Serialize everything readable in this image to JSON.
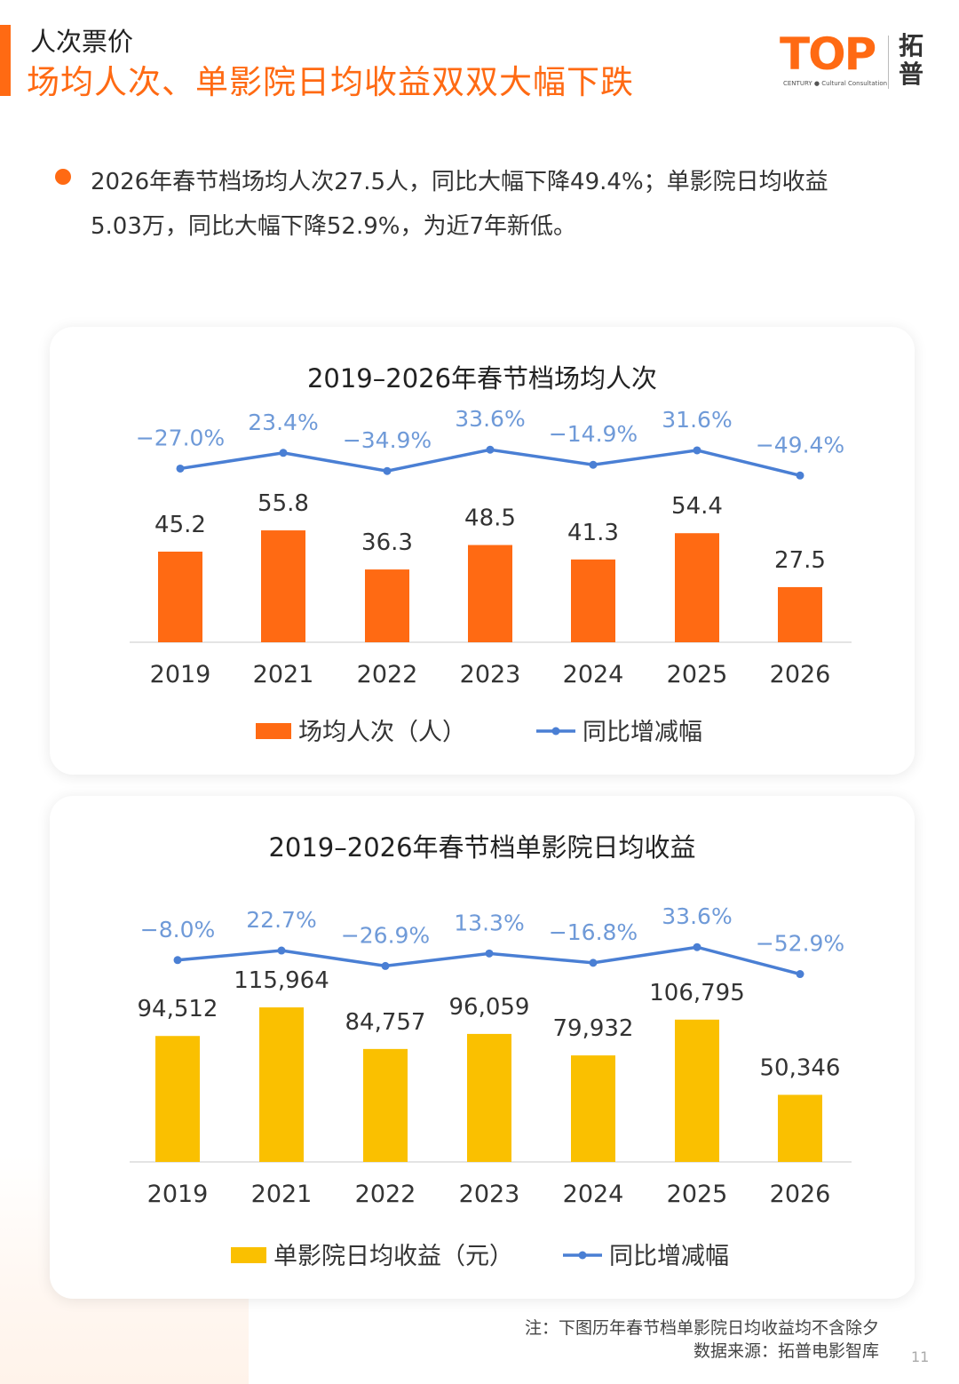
{
  "header": {
    "subtitle": "人次票价",
    "headline": "场均人次、单影院日均收益双双大幅下跌"
  },
  "logo": {
    "mark": "TOP",
    "sub": "CENTURY ● Cultural Consultation",
    "cn_line1": "拓",
    "cn_line2": "普"
  },
  "bullet": {
    "line1": "2026年春节档场均人次27.5人，同比大幅下降49.4%；单影院日均收益",
    "line2": "5.03万，同比大幅下降52.9%，为近7年新低。"
  },
  "chart_data": [
    {
      "type": "bar",
      "title": "2019–2026年春节档场均人次",
      "categories": [
        "2019",
        "2021",
        "2022",
        "2023",
        "2024",
        "2025",
        "2026"
      ],
      "series": [
        {
          "name": "场均人次（人）",
          "kind": "bar",
          "values": [
            45.2,
            55.8,
            36.3,
            48.5,
            41.3,
            54.4,
            27.5
          ],
          "labels": [
            "45.2",
            "55.8",
            "36.3",
            "48.5",
            "41.3",
            "54.4",
            "27.5"
          ]
        },
        {
          "name": "同比增减幅",
          "kind": "line",
          "values": [
            -27.0,
            23.4,
            -34.9,
            33.6,
            -14.9,
            31.6,
            -49.4
          ],
          "labels": [
            "−27.0%",
            "23.4%",
            "−34.9%",
            "33.6%",
            "−14.9%",
            "31.6%",
            "−49.4%"
          ]
        }
      ],
      "bar_color": "#ff6a13",
      "line_color": "#4a7fd4",
      "legend": [
        "场均人次（人）",
        "同比增减幅"
      ],
      "ylim": [
        0,
        60
      ]
    },
    {
      "type": "bar",
      "title": "2019–2026年春节档单影院日均收益",
      "categories": [
        "2019",
        "2021",
        "2022",
        "2023",
        "2024",
        "2025",
        "2026"
      ],
      "series": [
        {
          "name": "单影院日均收益（元）",
          "kind": "bar",
          "values": [
            94512,
            115964,
            84757,
            96059,
            79932,
            106795,
            50346
          ],
          "labels": [
            "94,512",
            "115,964",
            "84,757",
            "96,059",
            "79,932",
            "106,795",
            "50,346"
          ]
        },
        {
          "name": "同比增减幅",
          "kind": "line",
          "values": [
            -8.0,
            22.7,
            -26.9,
            13.3,
            -16.8,
            33.6,
            -52.9
          ],
          "labels": [
            "−8.0%",
            "22.7%",
            "−26.9%",
            "13.3%",
            "−16.8%",
            "33.6%",
            "−52.9%"
          ]
        }
      ],
      "bar_color": "#fac000",
      "line_color": "#4a7fd4",
      "legend": [
        "单影院日均收益（元）",
        "同比增减幅"
      ],
      "ylim": [
        0,
        125000
      ]
    }
  ],
  "footer": {
    "note": "注：下图历年春节档单影院日均收益均不含除夕",
    "source": "数据来源：拓普电影智库",
    "page": "11"
  }
}
